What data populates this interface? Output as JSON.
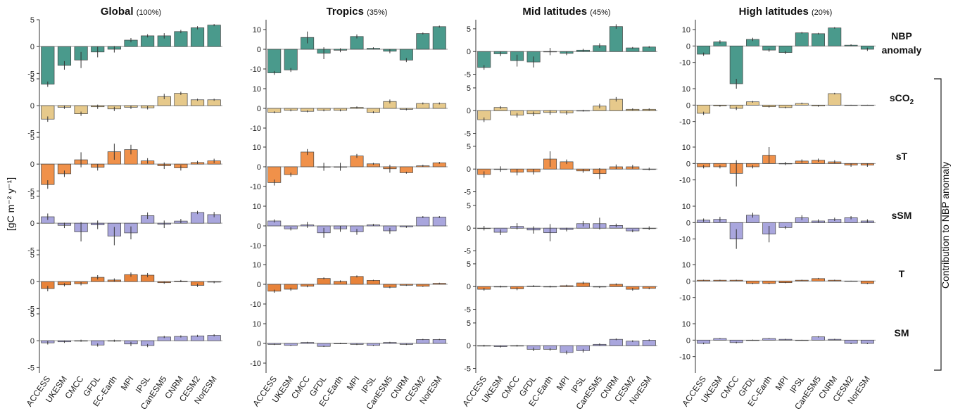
{
  "figure": {
    "ylabel": "[gC m⁻² y⁻¹]",
    "side_label": "Contribution to NBP anomaly",
    "row_labels": [
      {
        "line1": "NBP",
        "line2": "anomaly"
      },
      {
        "line1": "sCO",
        "sub": "2"
      },
      {
        "line1": "sT"
      },
      {
        "line1": "sSM"
      },
      {
        "line1": "T"
      },
      {
        "line1": "SM"
      }
    ],
    "colors": {
      "NBP": "#4a9a8c",
      "sCO2": "#e6c98b",
      "sT": "#f0914a",
      "sSM": "#a9a6dd",
      "T": "#e8833a",
      "SM": "#a9a6dd",
      "edge": "#444444",
      "baseline": "#999999"
    }
  },
  "chart_data": [
    {
      "type": "bar",
      "title": "Global",
      "title_note": "(100%)",
      "categories": [
        "ACCESS",
        "UKESM",
        "CMCC",
        "GFDL",
        "EC-Earth",
        "MPI",
        "IPSL",
        "CanESM5",
        "CNRM",
        "CESM2",
        "NorESM"
      ],
      "ylim": [
        -6,
        5
      ],
      "yticks": [
        -5,
        0,
        5
      ],
      "series": [
        {
          "name": "NBP anomaly",
          "values": [
            -7,
            -3.5,
            -2.5,
            -1,
            -0.5,
            1.2,
            2,
            2,
            2.8,
            3.5,
            4
          ],
          "err": [
            0.5,
            0.8,
            1.5,
            1,
            0.6,
            0.4,
            0.3,
            0.5,
            0.3,
            0.3,
            0.2
          ]
        },
        {
          "name": "sCO2",
          "values": [
            -2.5,
            -0.3,
            -1.5,
            -0.2,
            -0.6,
            -0.3,
            -0.4,
            1.7,
            2.3,
            1.1,
            1.1
          ],
          "err": [
            0.5,
            0.3,
            0.4,
            0.4,
            0.4,
            0.3,
            0.3,
            0.5,
            0.3,
            0.2,
            0.2
          ]
        },
        {
          "name": "sT",
          "values": [
            -3.8,
            -1.8,
            0.8,
            -0.6,
            2.3,
            2.7,
            0.6,
            -0.3,
            -0.7,
            0.3,
            0.6
          ],
          "err": [
            0.8,
            0.6,
            1.4,
            0.6,
            1.5,
            0.9,
            0.5,
            0.6,
            0.5,
            0.3,
            0.4
          ]
        },
        {
          "name": "sSM",
          "values": [
            1.2,
            -0.4,
            -1.6,
            -0.3,
            -2.4,
            -1.8,
            1.4,
            -0.2,
            0.4,
            2,
            1.6
          ],
          "err": [
            0.6,
            0.5,
            1.8,
            0.8,
            1.7,
            1.2,
            0.6,
            0.7,
            0.4,
            0.3,
            0.5
          ]
        },
        {
          "name": "T",
          "values": [
            -1.3,
            -0.6,
            -0.4,
            0.8,
            0.3,
            1.3,
            1.2,
            -0.2,
            0.1,
            -0.7,
            -0.1
          ],
          "err": [
            0.5,
            0.3,
            0.3,
            0.4,
            0.3,
            0.4,
            0.4,
            0.2,
            0.2,
            0.3,
            0.2
          ]
        },
        {
          "name": "SM",
          "values": [
            -0.4,
            -0.2,
            0,
            -0.8,
            0,
            -0.6,
            -0.9,
            0.7,
            0.8,
            0.9,
            1
          ],
          "err": [
            0.3,
            0.2,
            0.2,
            0.3,
            0.2,
            0.4,
            0.3,
            0.2,
            0.2,
            0.2,
            0.2
          ]
        }
      ]
    },
    {
      "type": "bar",
      "title": "Tropics",
      "title_note": "(35%)",
      "categories": [
        "ACCESS",
        "UKESM",
        "CMCC",
        "GFDL",
        "EC-Earth",
        "MPI",
        "IPSL",
        "CanESM5",
        "CNRM",
        "CESM2",
        "NorESM"
      ],
      "ylim": [
        -15,
        15
      ],
      "yticks": [
        -10,
        0,
        10
      ],
      "series": [
        {
          "name": "NBP anomaly",
          "values": [
            -12,
            -10.5,
            6,
            -2,
            -0.5,
            6.5,
            0.5,
            -1,
            -5.5,
            8,
            11.5
          ],
          "err": [
            1,
            1,
            3,
            3,
            1,
            1,
            0.5,
            1,
            1,
            0.5,
            0.5
          ]
        },
        {
          "name": "sCO2",
          "values": [
            -2,
            -1,
            -1.5,
            -1,
            -1,
            0.5,
            -2,
            3.5,
            -0.5,
            2.5,
            2.5
          ],
          "err": [
            0.5,
            0.5,
            0.5,
            0.5,
            0.5,
            0.5,
            0.5,
            1,
            0.5,
            0.5,
            0.5
          ]
        },
        {
          "name": "sT",
          "values": [
            -8,
            -4,
            7.5,
            0,
            0,
            5.5,
            1.5,
            -1,
            -3,
            0.5,
            2
          ],
          "err": [
            1.5,
            1,
            1.5,
            2,
            2,
            1,
            0.5,
            2,
            0.5,
            0.5,
            0.5
          ]
        },
        {
          "name": "sSM",
          "values": [
            2.5,
            -1.5,
            0.5,
            -3.5,
            -1.5,
            -3,
            0.5,
            -2.5,
            -0.5,
            4.5,
            4.5
          ],
          "err": [
            0.8,
            0.8,
            1.5,
            2.5,
            1.5,
            1.5,
            0.5,
            1.5,
            0.5,
            0.5,
            0.5
          ]
        },
        {
          "name": "T",
          "values": [
            -3.5,
            -2.5,
            -1,
            3,
            1.5,
            4,
            2,
            -1.5,
            -0.5,
            -1,
            0.5
          ],
          "err": [
            0.8,
            0.8,
            0.5,
            0.5,
            0.5,
            0.5,
            0.3,
            0.5,
            0.3,
            0.3,
            0.3
          ]
        },
        {
          "name": "SM",
          "values": [
            -0.5,
            -1,
            0.5,
            -1.5,
            0,
            -0.5,
            -1,
            0.5,
            -0.5,
            2,
            2
          ],
          "err": [
            0.3,
            0.3,
            0.3,
            0.3,
            0.3,
            0.3,
            0.3,
            0.3,
            0.3,
            0.3,
            0.3
          ]
        }
      ]
    },
    {
      "type": "bar",
      "title": "Mid latitudes",
      "title_note": "(45%)",
      "categories": [
        "ACCESS",
        "UKESM",
        "CMCC",
        "GFDL",
        "EC-Earth",
        "MPI",
        "IPSL",
        "CanESM5",
        "CNRM",
        "CESM2",
        "NorESM"
      ],
      "ylim": [
        -6,
        7
      ],
      "yticks": [
        -5,
        0,
        5
      ],
      "series": [
        {
          "name": "NBP anomaly",
          "values": [
            -3.5,
            -0.5,
            -2,
            -2.3,
            0,
            -0.4,
            0.3,
            1.3,
            5.5,
            0.8,
            1
          ],
          "err": [
            0.5,
            0.5,
            1.3,
            1.2,
            0.8,
            0.4,
            0.3,
            0.5,
            0.5,
            0.2,
            0.2
          ]
        },
        {
          "name": "sCO2",
          "values": [
            -2,
            0.7,
            -1,
            -0.7,
            -0.4,
            -0.5,
            0,
            1,
            2.5,
            0.3,
            0.3
          ],
          "err": [
            0.5,
            0.3,
            0.5,
            0.5,
            0.5,
            0.4,
            0.2,
            0.5,
            0.5,
            0.2,
            0.2
          ]
        },
        {
          "name": "sT",
          "values": [
            -1.2,
            0,
            -0.7,
            -0.6,
            2.2,
            1.6,
            -0.4,
            -1,
            0.5,
            0.5,
            0
          ],
          "err": [
            0.7,
            0.6,
            0.7,
            0.6,
            1.7,
            0.5,
            0.4,
            1.2,
            0.5,
            0.4,
            0.3
          ]
        },
        {
          "name": "sSM",
          "values": [
            0,
            -0.9,
            0.4,
            -0.4,
            -1,
            -0.3,
            1,
            1,
            0.6,
            -0.6,
            0
          ],
          "err": [
            0.5,
            0.6,
            0.7,
            0.8,
            1.9,
            0.4,
            0.6,
            1.3,
            0.4,
            0.3,
            0.4
          ]
        },
        {
          "name": "T",
          "values": [
            -0.6,
            0,
            -0.5,
            0.1,
            0,
            0.2,
            0.8,
            -0.1,
            0.5,
            -0.6,
            -0.4
          ],
          "err": [
            0.3,
            0.2,
            0.3,
            0.2,
            0.2,
            0.2,
            0.3,
            0.2,
            0.2,
            0.3,
            0.2
          ]
        },
        {
          "name": "SM",
          "values": [
            0,
            -0.2,
            0,
            -0.8,
            -0.8,
            -1.5,
            -1.1,
            0.3,
            1.4,
            1,
            1.2
          ],
          "err": [
            0.2,
            0.2,
            0.2,
            0.4,
            0.3,
            0.4,
            0.4,
            0.2,
            0.2,
            0.2,
            0.2
          ]
        }
      ]
    },
    {
      "type": "bar",
      "title": "High latitudes",
      "title_note": "(20%)",
      "categories": [
        "ACCESS",
        "UKESM",
        "CMCC",
        "GFDL",
        "EC-Earth",
        "MPI",
        "IPSL",
        "CanESM5",
        "CNRM",
        "CESM2",
        "NorESM"
      ],
      "ylim": [
        -20,
        16
      ],
      "yticks": [
        -10,
        0,
        10
      ],
      "series": [
        {
          "name": "NBP anomaly",
          "values": [
            -5,
            2.5,
            -23,
            4,
            -2.5,
            -4,
            8,
            7.5,
            11,
            0.5,
            -2
          ],
          "err": [
            1,
            1,
            3,
            1,
            1,
            1,
            0.5,
            0.5,
            0.5,
            0.5,
            1
          ]
        },
        {
          "name": "sCO2",
          "values": [
            -5,
            -0.5,
            -2,
            2,
            -1,
            -1.5,
            1,
            -0.5,
            7,
            0,
            0
          ],
          "err": [
            1,
            0.5,
            1,
            0.5,
            0.5,
            0.5,
            0.5,
            0.5,
            0.5,
            0.2,
            0.2
          ]
        },
        {
          "name": "sT",
          "values": [
            -2,
            -2,
            -6,
            -2,
            5,
            0,
            1.5,
            2,
            1,
            -1,
            -1
          ],
          "err": [
            1,
            1,
            8,
            1,
            5,
            1,
            1,
            1,
            1,
            1,
            1
          ]
        },
        {
          "name": "sSM",
          "values": [
            1.5,
            2,
            -10,
            4.5,
            -7,
            -3,
            3,
            1,
            2,
            3,
            1
          ],
          "err": [
            1,
            1.5,
            6,
            1.5,
            5,
            1,
            1.5,
            1,
            1,
            1,
            1
          ]
        },
        {
          "name": "T",
          "values": [
            0.5,
            0.5,
            0.5,
            -1.5,
            -1.5,
            -1,
            0.5,
            1.5,
            0.5,
            0,
            -1.5
          ],
          "err": [
            0.3,
            0.3,
            0.3,
            0.4,
            0.4,
            0.3,
            0.3,
            0.4,
            0.3,
            0.2,
            0.4
          ]
        },
        {
          "name": "SM",
          "values": [
            -2,
            1,
            -1.5,
            0,
            1,
            0.5,
            0,
            2,
            0.5,
            -2,
            -2
          ],
          "err": [
            0.5,
            0.3,
            0.5,
            0.3,
            0.3,
            0.3,
            0.2,
            0.4,
            0.3,
            0.4,
            0.4
          ]
        }
      ]
    }
  ]
}
